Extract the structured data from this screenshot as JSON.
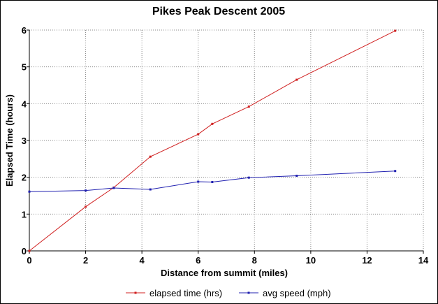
{
  "chart_data": {
    "type": "line",
    "title": "Pikes Peak Descent 2005",
    "xlabel": "Distance from summit (miles)",
    "ylabel": "Elapsed Time (hours)",
    "xlim": [
      0,
      14
    ],
    "ylim": [
      0,
      6
    ],
    "xticks": [
      0,
      2,
      4,
      6,
      8,
      10,
      12,
      14
    ],
    "yticks": [
      0,
      1,
      2,
      3,
      4,
      5,
      6
    ],
    "grid": true,
    "legend_position": "bottom",
    "series": [
      {
        "name": "elapsed time (hrs)",
        "color": "#d02020",
        "x": [
          0,
          2,
          3,
          4.3,
          6,
          6.5,
          7.8,
          9.5,
          13
        ],
        "y": [
          0,
          1.2,
          1.72,
          2.56,
          3.17,
          3.45,
          3.92,
          4.65,
          5.98
        ]
      },
      {
        "name": "avg speed (mph)",
        "color": "#2020b0",
        "x": [
          0,
          2,
          3,
          4.3,
          6,
          6.5,
          7.8,
          9.5,
          13
        ],
        "y": [
          1.61,
          1.64,
          1.71,
          1.67,
          1.88,
          1.87,
          1.99,
          2.04,
          2.17
        ]
      }
    ]
  }
}
